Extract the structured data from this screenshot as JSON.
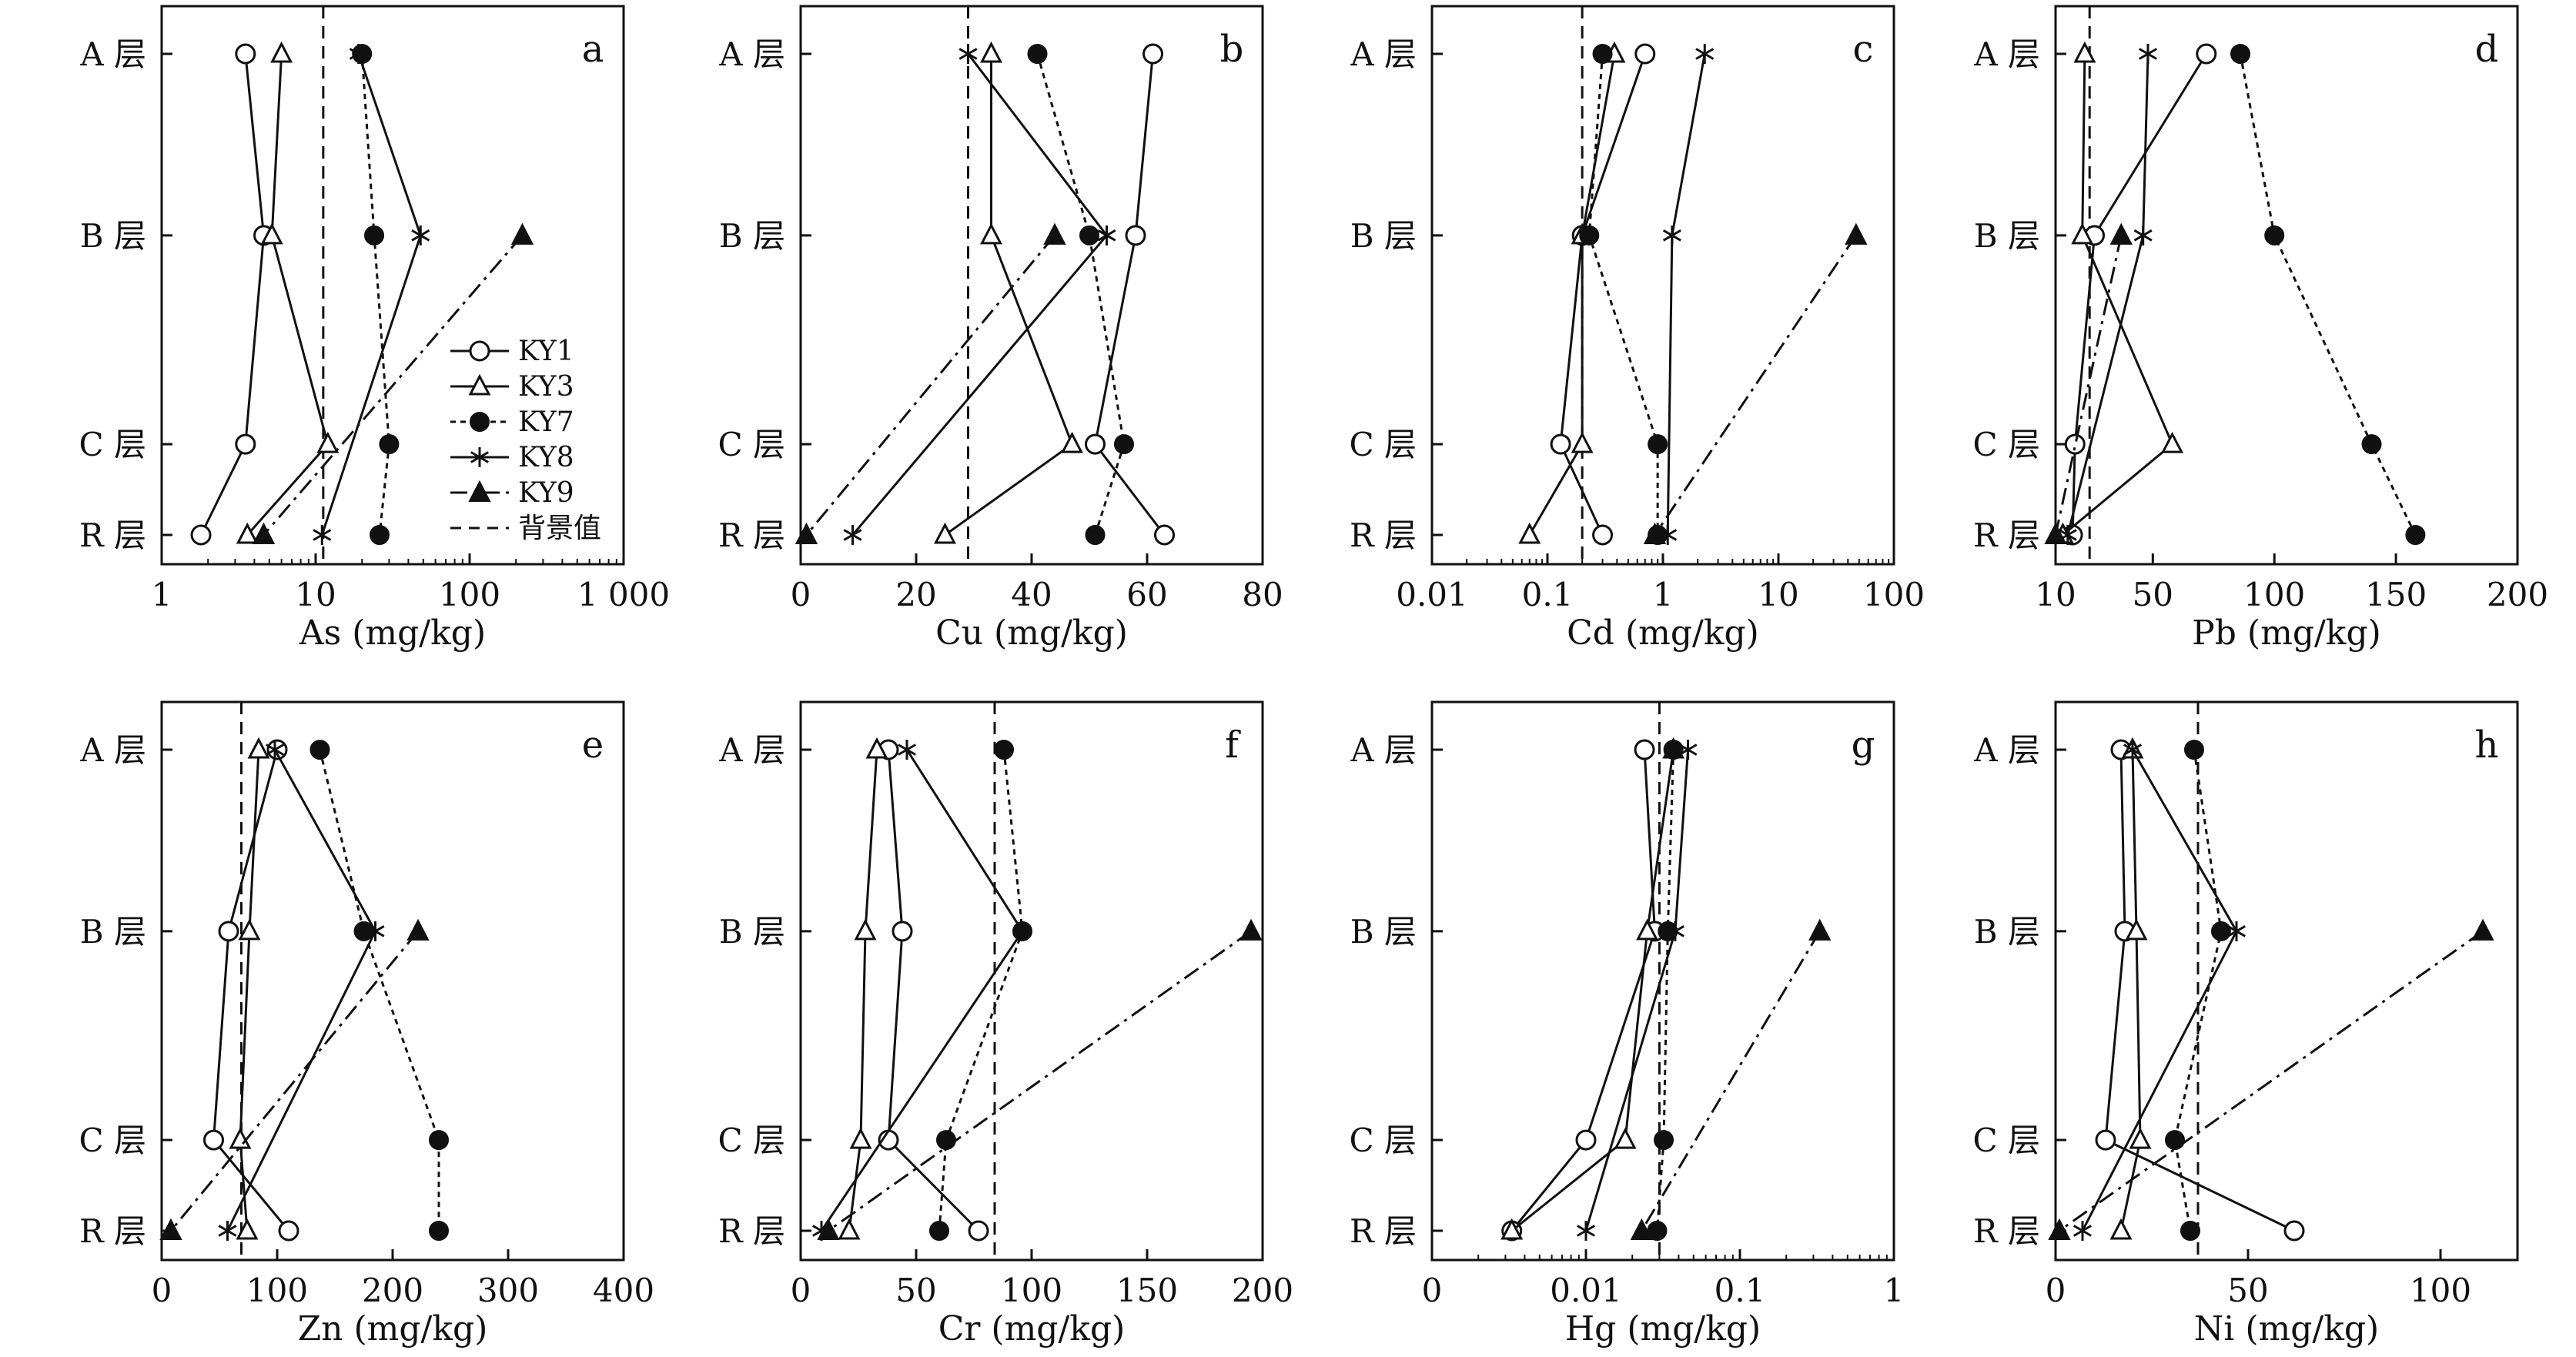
{
  "figure": {
    "layers": [
      "A 层",
      "B 层",
      "C 层",
      "R 层"
    ],
    "layer_depth": [
      0,
      1,
      2.15,
      2.65
    ],
    "legend": {
      "entries": [
        "KY1",
        "KY3",
        "KY7",
        "KY8",
        "KY9",
        "背景值"
      ]
    }
  },
  "chart_data": [
    {
      "type": "line",
      "letter": "a",
      "xlabel": "As (mg/kg)",
      "scale": "log",
      "xlim": [
        1,
        1000
      ],
      "ticks": [
        1,
        10,
        100,
        1000
      ],
      "tick_labels": [
        "1",
        "10",
        "100",
        "1 000"
      ],
      "background": 11.2,
      "series": [
        {
          "name": "KY1",
          "values": [
            3.5,
            4.6,
            3.5,
            1.8
          ]
        },
        {
          "name": "KY3",
          "values": [
            6.0,
            5.2,
            12.0,
            3.6
          ]
        },
        {
          "name": "KY7",
          "values": [
            20.0,
            24.0,
            30.0,
            26.0
          ]
        },
        {
          "name": "KY8",
          "values": [
            19.0,
            48.0,
            null,
            11.0
          ]
        },
        {
          "name": "KY9",
          "values": [
            null,
            220.0,
            null,
            4.6
          ]
        }
      ]
    },
    {
      "type": "line",
      "letter": "b",
      "xlabel": "Cu (mg/kg)",
      "scale": "linear",
      "xlim": [
        0,
        80
      ],
      "ticks": [
        0,
        20,
        40,
        60,
        80
      ],
      "tick_labels": [
        "0",
        "20",
        "40",
        "60",
        "80"
      ],
      "background": 29,
      "series": [
        {
          "name": "KY1",
          "values": [
            61,
            58,
            51,
            63
          ]
        },
        {
          "name": "KY3",
          "values": [
            33,
            33,
            47,
            25
          ]
        },
        {
          "name": "KY7",
          "values": [
            41,
            50,
            56,
            51
          ]
        },
        {
          "name": "KY8",
          "values": [
            29,
            53,
            null,
            9
          ]
        },
        {
          "name": "KY9",
          "values": [
            null,
            44,
            null,
            1
          ]
        }
      ]
    },
    {
      "type": "line",
      "letter": "c",
      "xlabel": "Cd (mg/kg)",
      "scale": "log",
      "xlim": [
        0.01,
        100
      ],
      "ticks": [
        0.01,
        0.1,
        1,
        10,
        100
      ],
      "tick_labels": [
        "0.01",
        "0.1",
        "1",
        "10",
        "100"
      ],
      "background": 0.2,
      "series": [
        {
          "name": "KY1",
          "values": [
            0.7,
            0.2,
            0.13,
            0.3
          ]
        },
        {
          "name": "KY3",
          "values": [
            0.38,
            0.2,
            0.2,
            0.07
          ]
        },
        {
          "name": "KY7",
          "values": [
            0.3,
            0.23,
            0.9,
            0.9
          ]
        },
        {
          "name": "KY8",
          "values": [
            2.3,
            1.2,
            null,
            1.1
          ]
        },
        {
          "name": "KY9",
          "values": [
            null,
            47.0,
            null,
            0.85
          ]
        }
      ]
    },
    {
      "type": "line",
      "letter": "d",
      "xlabel": "Pb (mg/kg)",
      "scale": "linear",
      "xlim": [
        10,
        200
      ],
      "ticks": [
        10,
        50,
        100,
        150,
        200
      ],
      "tick_labels": [
        "10",
        "50",
        "100",
        "150",
        "200"
      ],
      "background": 24,
      "series": [
        {
          "name": "KY1",
          "values": [
            72,
            26,
            18,
            17
          ]
        },
        {
          "name": "KY3",
          "values": [
            22,
            21,
            58,
            13
          ]
        },
        {
          "name": "KY7",
          "values": [
            86,
            100,
            140,
            158
          ]
        },
        {
          "name": "KY8",
          "values": [
            48,
            46,
            null,
            15
          ]
        },
        {
          "name": "KY9",
          "values": [
            null,
            37,
            null,
            10
          ]
        }
      ]
    },
    {
      "type": "line",
      "letter": "e",
      "xlabel": "Zn (mg/kg)",
      "scale": "linear",
      "xlim": [
        0,
        400
      ],
      "ticks": [
        0,
        100,
        200,
        300,
        400
      ],
      "tick_labels": [
        "0",
        "100",
        "200",
        "300",
        "400"
      ],
      "background": 69,
      "series": [
        {
          "name": "KY1",
          "values": [
            100,
            58,
            45,
            110
          ]
        },
        {
          "name": "KY3",
          "values": [
            84,
            76,
            68,
            74
          ]
        },
        {
          "name": "KY7",
          "values": [
            137,
            175,
            240,
            240
          ]
        },
        {
          "name": "KY8",
          "values": [
            98,
            185,
            null,
            57
          ]
        },
        {
          "name": "KY9",
          "values": [
            null,
            222,
            null,
            8
          ]
        }
      ]
    },
    {
      "type": "line",
      "letter": "f",
      "xlabel": "Cr (mg/kg)",
      "scale": "linear",
      "xlim": [
        0,
        200
      ],
      "ticks": [
        0,
        50,
        100,
        150,
        200
      ],
      "tick_labels": [
        "0",
        "50",
        "100",
        "150",
        "200"
      ],
      "background": 84,
      "series": [
        {
          "name": "KY1",
          "values": [
            38,
            44,
            38,
            77
          ]
        },
        {
          "name": "KY3",
          "values": [
            33,
            28,
            26,
            21
          ]
        },
        {
          "name": "KY7",
          "values": [
            88,
            96,
            63,
            60
          ]
        },
        {
          "name": "KY8",
          "values": [
            46,
            96,
            null,
            9
          ]
        },
        {
          "name": "KY9",
          "values": [
            null,
            195,
            null,
            12
          ]
        }
      ]
    },
    {
      "type": "line",
      "letter": "g",
      "xlabel": "Hg (mg/kg)",
      "scale": "log",
      "xlim": [
        0.001,
        1
      ],
      "ticks": [
        0.001,
        0.01,
        0.1,
        1
      ],
      "tick_labels": [
        "0",
        "0.01",
        "0.1",
        "1"
      ],
      "background": 0.03,
      "series": [
        {
          "name": "KY1",
          "values": [
            0.024,
            0.028,
            0.01,
            0.0033
          ]
        },
        {
          "name": "KY3",
          "values": [
            0.037,
            0.025,
            0.018,
            0.0033
          ]
        },
        {
          "name": "KY7",
          "values": [
            0.037,
            0.034,
            0.032,
            0.029
          ]
        },
        {
          "name": "KY8",
          "values": [
            0.046,
            0.038,
            null,
            0.01
          ]
        },
        {
          "name": "KY9",
          "values": [
            null,
            0.33,
            null,
            0.023
          ]
        }
      ]
    },
    {
      "type": "line",
      "letter": "h",
      "xlabel": "Ni (mg/kg)",
      "scale": "linear",
      "xlim": [
        0,
        120
      ],
      "ticks": [
        0,
        50,
        100
      ],
      "tick_labels": [
        "0",
        "50",
        "100"
      ],
      "background": 37,
      "series": [
        {
          "name": "KY1",
          "values": [
            17,
            18,
            13,
            62
          ]
        },
        {
          "name": "KY3",
          "values": [
            20,
            21,
            22,
            17
          ]
        },
        {
          "name": "KY7",
          "values": [
            36,
            43,
            31,
            35
          ]
        },
        {
          "name": "KY8",
          "values": [
            20,
            47,
            null,
            7
          ]
        },
        {
          "name": "KY9",
          "values": [
            null,
            111,
            null,
            1
          ]
        }
      ]
    }
  ]
}
